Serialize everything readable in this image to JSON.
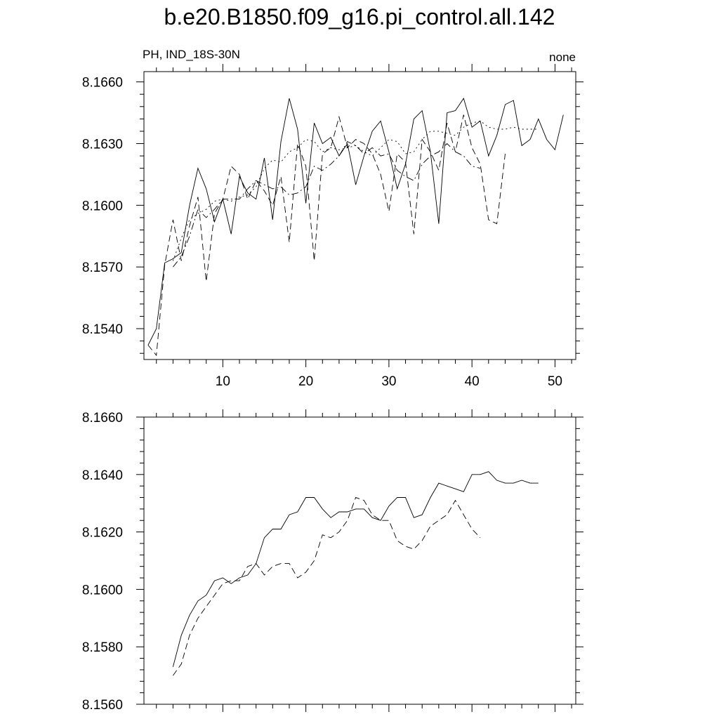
{
  "title": "b.e20.B1850.f09_g16.pi_control.all.142",
  "chart_data": [
    {
      "type": "line",
      "left_label": "PH, IND_18S-30N",
      "right_label": "none",
      "xlim": [
        0.5,
        52.5
      ],
      "ylim": [
        8.1525,
        8.1665
      ],
      "x_ticks": [
        10,
        20,
        30,
        40,
        50
      ],
      "y_ticks": [
        8.154,
        8.157,
        8.16,
        8.163,
        8.166
      ],
      "y_tick_labels": [
        "8.1540",
        "8.1570",
        "8.1600",
        "8.1630",
        "8.1660"
      ],
      "series": [
        {
          "style": "solid",
          "x": [
            1,
            2,
            3,
            4,
            5,
            6,
            7,
            8,
            9,
            10,
            11,
            12,
            13,
            14,
            15,
            16,
            17,
            18,
            19,
            20,
            21,
            22,
            23,
            24,
            25,
            26,
            27,
            28,
            29,
            30,
            31,
            32,
            33,
            34,
            35,
            36,
            37,
            38,
            39,
            40,
            41,
            42,
            43,
            44,
            45,
            46,
            47,
            48,
            49,
            50,
            51
          ],
          "values": [
            8.1532,
            8.154,
            8.1572,
            8.1574,
            8.1577,
            8.16,
            8.1618,
            8.1608,
            8.1592,
            8.1603,
            8.1586,
            8.1614,
            8.1606,
            8.1603,
            8.1623,
            8.1593,
            8.1631,
            8.1652,
            8.1637,
            8.1601,
            8.164,
            8.163,
            8.1633,
            8.1624,
            8.163,
            8.161,
            8.1624,
            8.1636,
            8.1641,
            8.1626,
            8.1608,
            8.162,
            8.1642,
            8.1646,
            8.1626,
            8.1591,
            8.1645,
            8.1646,
            8.1652,
            8.1638,
            8.1641,
            8.1624,
            8.1634,
            8.1649,
            8.1651,
            8.1629,
            8.1632,
            8.1642,
            8.1632,
            8.1627,
            8.1644
          ]
        },
        {
          "style": "dashed",
          "x": [
            1,
            2,
            3,
            4,
            5,
            6,
            7,
            8,
            9,
            10,
            11,
            12,
            13,
            14,
            15,
            16,
            17,
            18,
            19,
            20,
            21,
            22,
            23,
            24,
            25,
            26,
            27,
            28,
            29,
            30,
            31,
            32,
            33,
            34,
            35,
            36,
            37,
            38,
            39,
            40,
            41,
            42,
            43,
            44
          ],
          "values": [
            8.1532,
            8.1527,
            8.1571,
            8.1593,
            8.1573,
            8.159,
            8.1604,
            8.1563,
            8.1596,
            8.1603,
            8.1619,
            8.1615,
            8.1603,
            8.1612,
            8.1607,
            8.16,
            8.1614,
            8.1582,
            8.163,
            8.1619,
            8.1573,
            8.1625,
            8.1628,
            8.1643,
            8.1628,
            8.1632,
            8.163,
            8.1625,
            8.1615,
            8.1597,
            8.1625,
            8.1621,
            8.1586,
            8.1632,
            8.1626,
            8.1617,
            8.164,
            8.1626,
            8.1644,
            8.1628,
            8.162,
            8.1593,
            8.1591,
            8.1625
          ]
        },
        {
          "style": "dashdot",
          "x": [
            4,
            5,
            6,
            7,
            8,
            9,
            10,
            11,
            12,
            13,
            14,
            15,
            16,
            17,
            18,
            19,
            20,
            21,
            22,
            23,
            24,
            25,
            26,
            27,
            28,
            29,
            30,
            31,
            32,
            33,
            34,
            35,
            36,
            37,
            38,
            39,
            40,
            41
          ],
          "values": [
            8.157,
            8.1575,
            8.1585,
            8.1598,
            8.1594,
            8.1598,
            8.1603,
            8.1603,
            8.1603,
            8.1608,
            8.1612,
            8.161,
            8.1608,
            8.1609,
            8.1605,
            8.1606,
            8.1609,
            8.1619,
            8.1617,
            8.162,
            8.1624,
            8.1631,
            8.1629,
            8.1625,
            8.1628,
            8.1624,
            8.1625,
            8.1617,
            8.1614,
            8.1612,
            8.162,
            8.1624,
            8.1626,
            8.163,
            8.1626,
            8.1624,
            8.1619,
            8.1618
          ]
        },
        {
          "style": "dotted",
          "x": [
            4,
            5,
            6,
            7,
            8,
            9,
            10,
            11,
            12,
            13,
            14,
            15,
            16,
            17,
            18,
            19,
            20,
            21,
            22,
            23,
            24,
            25,
            26,
            27,
            28,
            29,
            30,
            31,
            32,
            33,
            34,
            35,
            36,
            37,
            38,
            39,
            40,
            41,
            42,
            43,
            44,
            45,
            46,
            47,
            48
          ],
          "values": [
            8.1573,
            8.1584,
            8.1593,
            8.1596,
            8.1598,
            8.1602,
            8.1603,
            8.1602,
            8.1604,
            8.1605,
            8.1609,
            8.1618,
            8.1622,
            8.1621,
            8.1626,
            8.1628,
            8.1632,
            8.1631,
            8.1626,
            8.1628,
            8.1627,
            8.1628,
            8.1629,
            8.1626,
            8.1624,
            8.1628,
            8.1632,
            8.1631,
            8.1625,
            8.1626,
            8.1632,
            8.1636,
            8.1636,
            8.1635,
            8.1634,
            8.1638,
            8.164,
            8.1641,
            8.1638,
            8.1637,
            8.1637,
            8.1638,
            8.1637,
            8.1637,
            8.1637
          ]
        }
      ]
    },
    {
      "type": "line",
      "xlim": [
        0.5,
        52.5
      ],
      "ylim": [
        8.156,
        8.166
      ],
      "x_ticks": [
        10,
        20,
        30,
        40,
        50
      ],
      "y_ticks": [
        8.156,
        8.158,
        8.16,
        8.162,
        8.164,
        8.166
      ],
      "y_tick_labels": [
        "8.1560",
        "8.1580",
        "8.1600",
        "8.1620",
        "8.1640",
        "8.1660"
      ],
      "series": [
        {
          "style": "solid",
          "x": [
            4,
            5,
            6,
            7,
            8,
            9,
            10,
            11,
            12,
            13,
            14,
            15,
            16,
            17,
            18,
            19,
            20,
            21,
            22,
            23,
            24,
            25,
            26,
            27,
            28,
            29,
            30,
            31,
            32,
            33,
            34,
            35,
            36,
            37,
            38,
            39,
            40,
            41,
            42,
            43,
            44,
            45,
            46,
            47,
            48
          ],
          "values": [
            8.1573,
            8.1584,
            8.1591,
            8.1596,
            8.1598,
            8.1603,
            8.1604,
            8.1602,
            8.1604,
            8.1605,
            8.1609,
            8.1618,
            8.1621,
            8.1621,
            8.1626,
            8.1627,
            8.1632,
            8.1632,
            8.1628,
            8.1625,
            8.1627,
            8.1627,
            8.1628,
            8.1628,
            8.1625,
            8.1624,
            8.1629,
            8.1632,
            8.1632,
            8.1625,
            8.1626,
            8.1632,
            8.1637,
            8.1636,
            8.1635,
            8.1634,
            8.164,
            8.164,
            8.1641,
            8.1638,
            8.1637,
            8.1637,
            8.1638,
            8.1637,
            8.1637
          ]
        },
        {
          "style": "dashed",
          "x": [
            4,
            5,
            6,
            7,
            8,
            9,
            10,
            11,
            12,
            13,
            14,
            15,
            16,
            17,
            18,
            19,
            20,
            21,
            22,
            23,
            24,
            25,
            26,
            27,
            28,
            29,
            30,
            31,
            32,
            33,
            34,
            35,
            36,
            37,
            38,
            39,
            40,
            41
          ],
          "values": [
            8.157,
            8.1574,
            8.1584,
            8.159,
            8.1594,
            8.1598,
            8.1602,
            8.1603,
            8.1603,
            8.1608,
            8.1609,
            8.1605,
            8.1608,
            8.1609,
            8.1609,
            8.1604,
            8.1606,
            8.161,
            8.1619,
            8.1618,
            8.162,
            8.1624,
            8.1632,
            8.1631,
            8.1626,
            8.1624,
            8.1624,
            8.1617,
            8.1615,
            8.1614,
            8.1617,
            8.1622,
            8.1624,
            8.1626,
            8.1631,
            8.1626,
            8.1621,
            8.1618
          ]
        }
      ]
    }
  ]
}
